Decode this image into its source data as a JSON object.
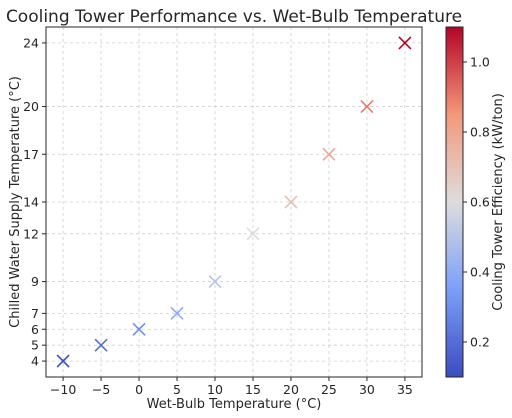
{
  "chart_data": {
    "type": "scatter",
    "title": "Cooling Tower Performance vs. Wet-Bulb Temperature",
    "xlabel": "Wet-Bulb Temperature (°C)",
    "ylabel": "Chilled Water Supply Temperature (°C)",
    "x": [
      -10,
      -5,
      0,
      5,
      10,
      15,
      20,
      25,
      30,
      35
    ],
    "y": [
      4,
      5,
      6,
      7,
      9,
      12,
      14,
      17,
      20,
      24
    ],
    "color_values": [
      0.1,
      0.2,
      0.3,
      0.4,
      0.5,
      0.6,
      0.7,
      0.8,
      0.9,
      1.1
    ],
    "marker": "x",
    "xticks": [
      "−10",
      "−5",
      "0",
      "5",
      "10",
      "15",
      "20",
      "25",
      "30",
      "35"
    ],
    "xtick_values": [
      -10,
      -5,
      0,
      5,
      10,
      15,
      20,
      25,
      30,
      35
    ],
    "yticks": [
      "4",
      "5",
      "6",
      "7",
      "9",
      "12",
      "14",
      "17",
      "20",
      "24"
    ],
    "ytick_values": [
      4,
      5,
      6,
      7,
      9,
      12,
      14,
      17,
      20,
      24
    ],
    "xlim": [
      -12.25,
      37.25
    ],
    "ylim": [
      3,
      25
    ],
    "grid": true,
    "colorbar": {
      "label": "Cooling Tower Efficiency (kW/ton)",
      "colormap": "coolwarm",
      "range": [
        0.1,
        1.1
      ],
      "ticks": [
        "0.2",
        "0.4",
        "0.6",
        "0.8",
        "1.0"
      ],
      "tick_values": [
        0.2,
        0.4,
        0.6,
        0.8,
        1.0
      ]
    }
  }
}
